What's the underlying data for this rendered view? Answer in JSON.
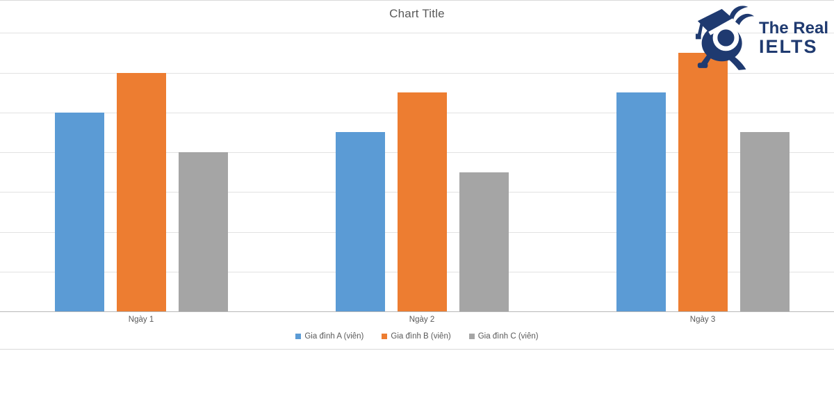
{
  "chart_data": {
    "type": "bar",
    "title": "Chart Title",
    "categories": [
      "Ngày 1",
      "Ngày 2",
      "Ngày 3"
    ],
    "series": [
      {
        "name": "Gia đình A (viên)",
        "color": "#5B9BD5",
        "values": [
          5,
          4.5,
          5.5
        ]
      },
      {
        "name": "Gia đình B (viên)",
        "color": "#ED7D31",
        "values": [
          6,
          5.5,
          6.5
        ]
      },
      {
        "name": "Gia đình C (viên)",
        "color": "#A5A5A5",
        "values": [
          4,
          3.5,
          4.5
        ]
      }
    ],
    "xlabel": "",
    "ylabel": "",
    "ylim": [
      0,
      7.25
    ],
    "gridline_step": 1,
    "grid": true,
    "y_axis_labels_visible": false,
    "legend_position": "bottom"
  },
  "chart_style": {
    "title_color": "#595959",
    "label_color": "#595959",
    "gridline_color": "#e2e2e2",
    "axis_line_color": "#b7b7b7",
    "border_color": "#d9d9d9",
    "background": "#ffffff"
  },
  "logo": {
    "line1": "The Real",
    "line2": "IELTS",
    "color": "#1f3a70",
    "mascot": "graduate-owl-mascot-icon"
  }
}
